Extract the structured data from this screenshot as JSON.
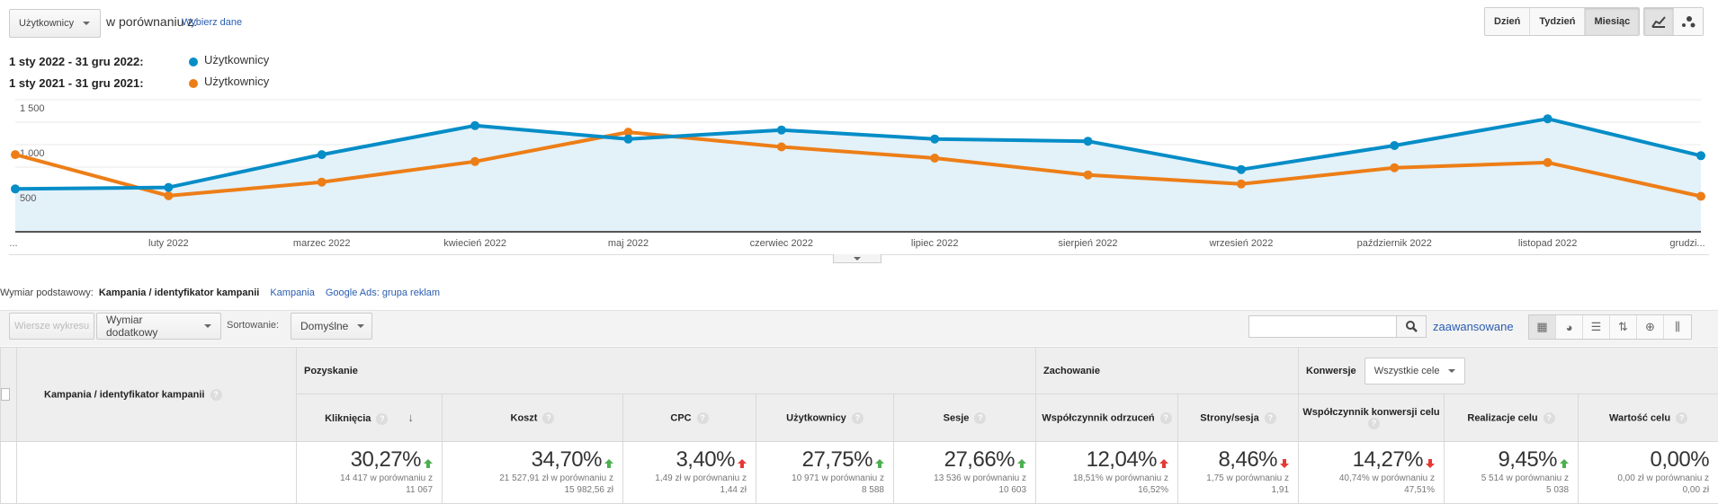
{
  "header": {
    "metric": "Użytkownicy",
    "compare_label": "w porównaniu z:",
    "choose_link": "Wybierz dane",
    "granularity": [
      {
        "label": "Dzień",
        "active": false
      },
      {
        "label": "Tydzień",
        "active": false
      },
      {
        "label": "Miesiąc",
        "active": true
      }
    ],
    "chart_types": [
      "line-chart-icon",
      "motion-chart-icon"
    ]
  },
  "legend": [
    {
      "range": "1 sty 2022 - 31 gru 2022:",
      "series": "Użytkownicy",
      "color": "#058dc7"
    },
    {
      "range": "1 sty 2021 - 31 gru 2021:",
      "series": "Użytkownicy",
      "color": "#ed7e17"
    }
  ],
  "chart_data": {
    "type": "line",
    "title": "",
    "xlabel": "",
    "ylabel": "Użytkownicy",
    "categories": [
      "...",
      "luty 2022",
      "marzec 2022",
      "kwiecień 2022",
      "maj 2022",
      "czerwiec 2022",
      "lipiec 2022",
      "sierpień 2022",
      "wrzesień 2022",
      "październik 2022",
      "listopad 2022",
      "grudzi..."
    ],
    "y_ticks": [
      {
        "v": 1500,
        "label": "1 500"
      },
      {
        "v": 1000,
        "label": "1,000"
      },
      {
        "v": 500,
        "label": "500"
      }
    ],
    "ylim": [
      30,
      1500
    ],
    "grid": true,
    "series": [
      {
        "name": "1 sty 2022 - 31 gru 2022: Użytkownicy",
        "color": "#058dc7",
        "values": [
          507,
          524,
          889,
          1212,
          1062,
          1163,
          1063,
          1038,
          723,
          990,
          1288,
          877
        ]
      },
      {
        "name": "1 sty 2021 - 31 gru 2021: Użytkownicy",
        "color": "#ed7e17",
        "values": [
          889,
          431,
          583,
          812,
          1139,
          975,
          850,
          663,
          562,
          743,
          801,
          425
        ]
      }
    ]
  },
  "dimension": {
    "label": "Wymiar podstawowy:",
    "active": "Kampania / identyfikator kampanii",
    "links": [
      "Kampania",
      "Google Ads: grupa reklam"
    ]
  },
  "toolbar": {
    "plot_rows": "Wiersze wykresu",
    "secondary": "Wymiar dodatkowy",
    "sort_label": "Sortowanie:",
    "sort_value": "Domyślne",
    "search_value": "",
    "advanced": "zaawansowane"
  },
  "table": {
    "dim_header": "Kampania / identyfikator kampanii",
    "groups": {
      "acq": "Pozyskanie",
      "beh": "Zachowanie",
      "conv": "Konwersje",
      "conv_select": "Wszystkie cele"
    },
    "columns": [
      {
        "h": "Kliknięcia",
        "pct": "30,27%",
        "dir": "up",
        "good": true,
        "cmp1": "14 417 w porównaniu z",
        "cmp2": "11 067"
      },
      {
        "h": "Koszt",
        "pct": "34,70%",
        "dir": "up",
        "good": true,
        "cmp1": "21 527,91 zł w porównaniu z",
        "cmp2": "15 982,56 zł"
      },
      {
        "h": "CPC",
        "pct": "3,40%",
        "dir": "up",
        "good": false,
        "cmp1": "1,49 zł w porównaniu z",
        "cmp2": "1,44 zł"
      },
      {
        "h": "Użytkownicy",
        "pct": "27,75%",
        "dir": "up",
        "good": true,
        "cmp1": "10 971 w porównaniu z",
        "cmp2": "8 588"
      },
      {
        "h": "Sesje",
        "pct": "27,66%",
        "dir": "up",
        "good": true,
        "cmp1": "13 536 w porównaniu z",
        "cmp2": "10 603"
      },
      {
        "h": "Współczynnik odrzuceń",
        "pct": "12,04%",
        "dir": "up",
        "good": false,
        "cmp1": "18,51% w porównaniu z",
        "cmp2": "16,52%"
      },
      {
        "h": "Strony/sesja",
        "pct": "8,46%",
        "dir": "down",
        "good": false,
        "cmp1": "1,75 w porównaniu z",
        "cmp2": "1,91"
      },
      {
        "h": "Współczynnik konwersji celu",
        "pct": "14,27%",
        "dir": "down",
        "good": false,
        "cmp1": "40,74% w porównaniu z",
        "cmp2": "47,51%"
      },
      {
        "h": "Realizacje celu",
        "pct": "9,45%",
        "dir": "up",
        "good": true,
        "cmp1": "5 514 w porównaniu z",
        "cmp2": "5 038"
      },
      {
        "h": "Wartość celu",
        "pct": "0,00%",
        "dir": "none",
        "good": true,
        "cmp1": "0,00 zł w porównaniu z",
        "cmp2": "0,00 zł"
      }
    ]
  }
}
